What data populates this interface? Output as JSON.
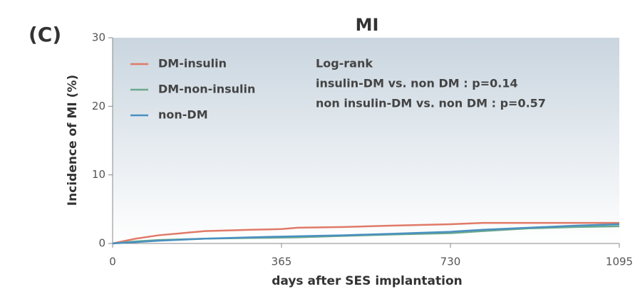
{
  "chart_data": {
    "type": "line",
    "panel_label": "(C)",
    "title": "MI",
    "x_label": "days after SES implantation",
    "y_label": "Incidence of MI (%)",
    "annotations": [
      "Log-rank",
      "insulin-DM vs. non DM : p=0.14",
      "non insulin-DM vs. non DM : p=0.57"
    ],
    "x": [
      0,
      50,
      100,
      200,
      300,
      365,
      400,
      500,
      600,
      730,
      800,
      900,
      1000,
      1095
    ],
    "series": [
      {
        "name": "DM-insulin",
        "color": "#e07a68",
        "values": [
          0,
          0.7,
          1.2,
          1.8,
          2.0,
          2.1,
          2.3,
          2.4,
          2.6,
          2.8,
          3.0,
          3.0,
          3.0,
          3.0
        ]
      },
      {
        "name": "DM-non-insulin",
        "color": "#6aa88c",
        "values": [
          0,
          0.3,
          0.5,
          0.7,
          0.8,
          0.85,
          0.9,
          1.1,
          1.3,
          1.5,
          1.8,
          2.2,
          2.4,
          2.5
        ]
      },
      {
        "name": "non-DM",
        "color": "#4a90c0",
        "values": [
          0,
          0.2,
          0.4,
          0.7,
          0.9,
          1.0,
          1.05,
          1.2,
          1.4,
          1.7,
          2.0,
          2.3,
          2.6,
          2.8
        ]
      }
    ],
    "xlim": [
      0,
      1095
    ],
    "xticks": [
      0,
      365,
      730,
      1095
    ],
    "ylim": [
      0,
      30
    ],
    "yticks": [
      0,
      10,
      20,
      30
    ]
  }
}
